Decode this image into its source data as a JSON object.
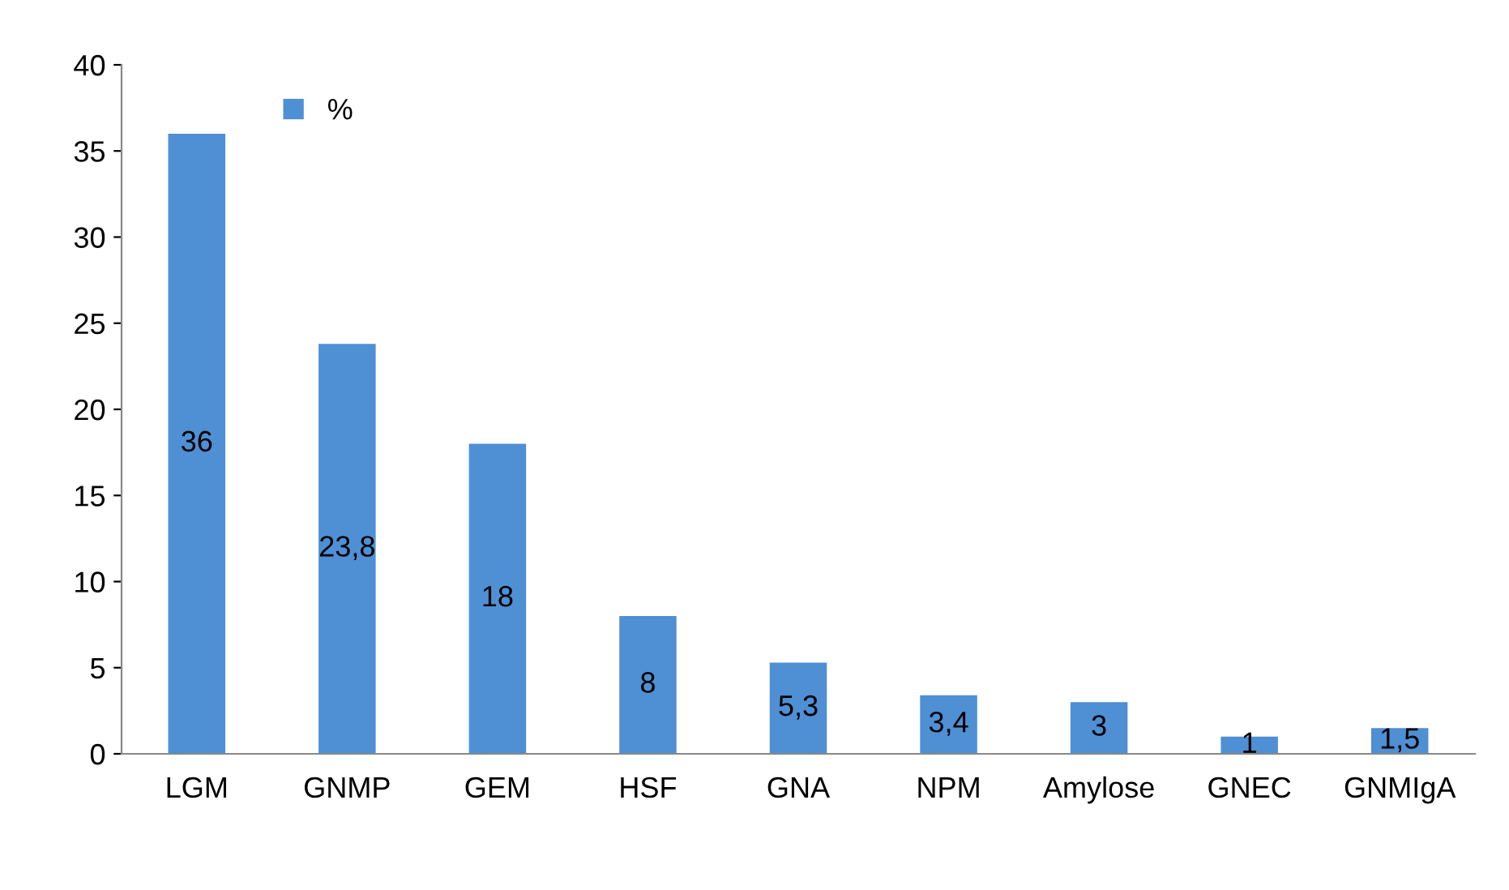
{
  "chart_data": {
    "type": "bar",
    "categories": [
      "LGM",
      "GNMP",
      "GEM",
      "HSF",
      "GNA",
      "NPM",
      "Amylose",
      "GNEC",
      "GNMIgA"
    ],
    "series": [
      {
        "name": "%",
        "color": "#4f8fd4",
        "values": [
          36,
          23.8,
          18,
          8,
          5.3,
          3.4,
          3,
          1,
          1.5
        ],
        "value_labels": [
          "36",
          "23,8",
          "18",
          "8",
          "5,3",
          "3,4",
          "3",
          "1",
          "1,5"
        ]
      }
    ],
    "ylim": [
      0,
      40
    ],
    "yticks": [
      0,
      5,
      10,
      15,
      20,
      25,
      30,
      35,
      40
    ],
    "grid": false,
    "legend": "top left"
  }
}
